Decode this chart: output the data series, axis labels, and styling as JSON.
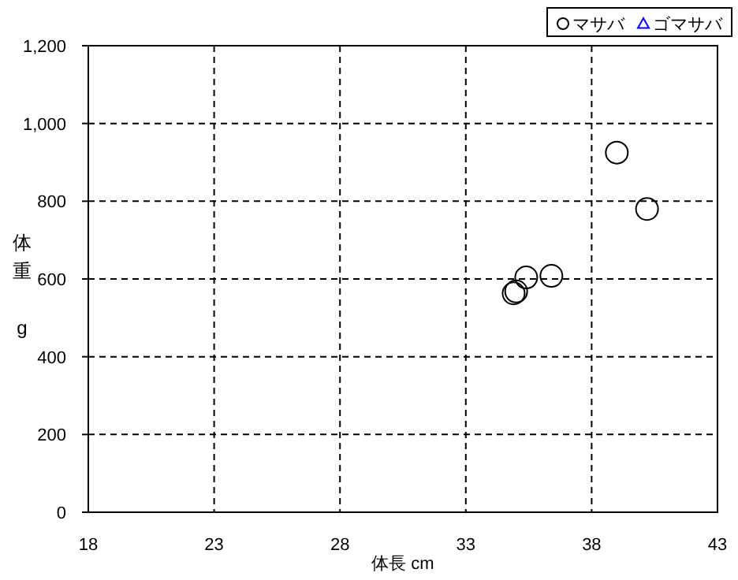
{
  "chart_data": {
    "type": "scatter",
    "xlabel": "体長 cm",
    "ylabel": "体重 g",
    "xlim": [
      18,
      43
    ],
    "xticks": [
      18,
      23,
      28,
      33,
      38,
      43
    ],
    "ylim": [
      0,
      1200
    ],
    "yticks": [
      0,
      200,
      400,
      600,
      800,
      {
        "value": 1000,
        "label": "1,000"
      },
      {
        "value": 1200,
        "label": "1,200"
      }
    ],
    "grid": true,
    "line_style": "dashed",
    "legend": "top right",
    "series": [
      {
        "name": "マサバ",
        "color": "#000000",
        "marker": "circle",
        "x": [
          39.0,
          40.2,
          35.4,
          36.4,
          34.9,
          35.0
        ],
        "values": [
          925,
          780,
          604,
          608,
          563,
          568
        ]
      },
      {
        "name": "ゴマサバ",
        "color": "#0000ff",
        "marker": "triangle"
      }
    ]
  }
}
